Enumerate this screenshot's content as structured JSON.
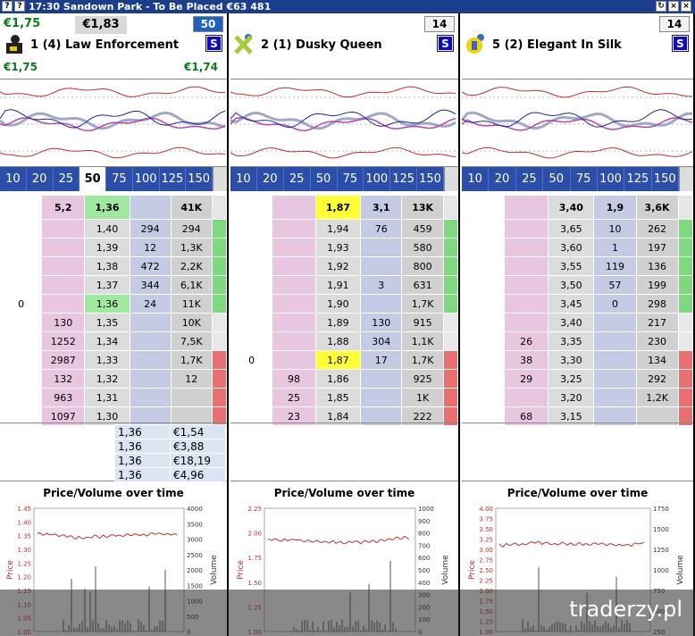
{
  "window": {
    "ctl_left": "?",
    "title": "17:30  Sandown Park - To Be Placed   €63 481",
    "ctl_refresh": "↻",
    "ctl_close": "×"
  },
  "stakes": [
    "10",
    "20",
    "25",
    "50",
    "75",
    "100",
    "125",
    "150"
  ],
  "selected_stake": "50",
  "runners": [
    {
      "back": "€1,75",
      "lay": "€1,83",
      "number": "50",
      "number_highlight": true,
      "name": "1  (4) Law Enforcement",
      "sub_back": "€1,75",
      "sub_lay": "€1,74",
      "badge": "S",
      "header": {
        "back": "5,2",
        "price": "1,36",
        "lay": "",
        "total": "41K"
      },
      "rows": [
        {
          "vol": "",
          "back": "",
          "price": "1,40",
          "lay": "294",
          "total": "294"
        },
        {
          "vol": "",
          "back": "",
          "price": "1,39",
          "lay": "12",
          "total": "1,3K"
        },
        {
          "vol": "",
          "back": "",
          "price": "1,38",
          "lay": "472",
          "total": "2,2K"
        },
        {
          "vol": "",
          "back": "",
          "price": "1,37",
          "lay": "344",
          "total": "6,1K"
        },
        {
          "vol": "0",
          "back": "",
          "price": "1,36",
          "lay": "24",
          "total": "11K",
          "hl": "green"
        },
        {
          "vol": "",
          "back": "130",
          "price": "1,35",
          "lay": "",
          "total": "10K"
        },
        {
          "vol": "",
          "back": "1252",
          "price": "1,34",
          "lay": "",
          "total": "7,5K"
        },
        {
          "vol": "",
          "back": "2987",
          "price": "1,33",
          "lay": "",
          "total": "1,7K"
        },
        {
          "vol": "",
          "back": "132",
          "price": "1,32",
          "lay": "",
          "total": "12"
        },
        {
          "vol": "",
          "back": "963",
          "price": "1,31",
          "lay": "",
          "total": ""
        },
        {
          "vol": "",
          "back": "1097",
          "price": "1,30",
          "lay": "",
          "total": ""
        }
      ],
      "history": [
        [
          "1,36",
          "€1,54"
        ],
        [
          "1,36",
          "€3,88"
        ],
        [
          "1,36",
          "€18,19"
        ],
        [
          "1,36",
          "€4,96"
        ]
      ],
      "pv": {
        "title": "Price/Volume over time",
        "ylabel": "Price",
        "y2label": "Volume",
        "yticks": [
          "1.45",
          "1.40",
          "1.35",
          "1.30",
          "1.25",
          "1.20",
          "1.15",
          "1.10",
          "1.05",
          "1.00"
        ],
        "y2ticks": [
          "4000",
          "3500",
          "3000",
          "2500",
          "2000",
          "1500",
          "1000",
          "500",
          "0"
        ]
      }
    },
    {
      "back": "",
      "lay": "",
      "number": "14",
      "number_highlight": false,
      "name": "2  (1) Dusky Queen",
      "sub_back": "",
      "sub_lay": "",
      "badge": "S",
      "header": {
        "back": "",
        "price": "1,87",
        "lay": "3,1",
        "total": "13K"
      },
      "rows": [
        {
          "vol": "",
          "back": "",
          "price": "1,94",
          "lay": "76",
          "total": "459"
        },
        {
          "vol": "",
          "back": "",
          "price": "1,93",
          "lay": "",
          "total": "580"
        },
        {
          "vol": "",
          "back": "",
          "price": "1,92",
          "lay": "",
          "total": "800"
        },
        {
          "vol": "",
          "back": "",
          "price": "1,91",
          "lay": "3",
          "total": "631"
        },
        {
          "vol": "",
          "back": "",
          "price": "1,90",
          "lay": "",
          "total": "1,7K"
        },
        {
          "vol": "",
          "back": "",
          "price": "1,89",
          "lay": "130",
          "total": "915"
        },
        {
          "vol": "",
          "back": "",
          "price": "1,88",
          "lay": "304",
          "total": "1,1K"
        },
        {
          "vol": "0",
          "back": "",
          "price": "1,87",
          "lay": "17",
          "total": "1,7K",
          "hl": "yellow"
        },
        {
          "vol": "",
          "back": "98",
          "price": "1,86",
          "lay": "",
          "total": "925"
        },
        {
          "vol": "",
          "back": "25",
          "price": "1,85",
          "lay": "",
          "total": "1K"
        },
        {
          "vol": "",
          "back": "23",
          "price": "1,84",
          "lay": "",
          "total": "222"
        }
      ],
      "history": [],
      "pv": {
        "title": "Price/Volume over time",
        "ylabel": "Price",
        "y2label": "Volume",
        "yticks": [
          "2.25",
          "2.00",
          "1.75",
          "1.50",
          "1.25",
          "1.00"
        ],
        "y2ticks": [
          "1000",
          "900",
          "800",
          "700",
          "600",
          "500",
          "400",
          "300",
          "200",
          "100",
          "0"
        ]
      }
    },
    {
      "back": "",
      "lay": "",
      "number": "14",
      "number_highlight": false,
      "name": "5  (2) Elegant In Silk",
      "sub_back": "",
      "sub_lay": "",
      "badge": "S",
      "header": {
        "back": "",
        "price": "3,40",
        "lay": "1,9",
        "total": "3,6K"
      },
      "rows": [
        {
          "vol": "",
          "back": "",
          "price": "3,65",
          "lay": "10",
          "total": "262"
        },
        {
          "vol": "",
          "back": "",
          "price": "3,60",
          "lay": "1",
          "total": "197"
        },
        {
          "vol": "",
          "back": "",
          "price": "3,55",
          "lay": "119",
          "total": "136"
        },
        {
          "vol": "",
          "back": "",
          "price": "3,50",
          "lay": "57",
          "total": "199"
        },
        {
          "vol": "",
          "back": "",
          "price": "3,45",
          "lay": "0",
          "total": "298"
        },
        {
          "vol": "",
          "back": "",
          "price": "3,40",
          "lay": "",
          "total": "217"
        },
        {
          "vol": "",
          "back": "26",
          "price": "3,35",
          "lay": "",
          "total": "230"
        },
        {
          "vol": "",
          "back": "38",
          "price": "3,30",
          "lay": "",
          "total": "134"
        },
        {
          "vol": "",
          "back": "29",
          "price": "3,25",
          "lay": "",
          "total": "292"
        },
        {
          "vol": "",
          "back": "",
          "price": "3,20",
          "lay": "",
          "total": "1,2K"
        },
        {
          "vol": "",
          "back": "68",
          "price": "3,15",
          "lay": "",
          "total": ""
        }
      ],
      "history": [],
      "pv": {
        "title": "Price/Volume over time",
        "ylabel": "Price",
        "y2label": "Volume",
        "yticks": [
          "4.00",
          "3.75",
          "3.50",
          "3.25",
          "3.00",
          "2.75",
          "2.50",
          "2.25",
          "2.00",
          "1.75",
          "1.50",
          "1.25",
          "1.00"
        ],
        "y2ticks": [
          "1750",
          "1500",
          "1250",
          "1000",
          "750",
          "500",
          "250"
        ]
      }
    }
  ],
  "watermark": "traderzy.pl",
  "colors": {
    "title_bg": "#1a3d8c",
    "back": "#e8c6df",
    "lay": "#c5cbe4",
    "green_price": "#0a7d1a",
    "chart_line": "#c03030"
  }
}
